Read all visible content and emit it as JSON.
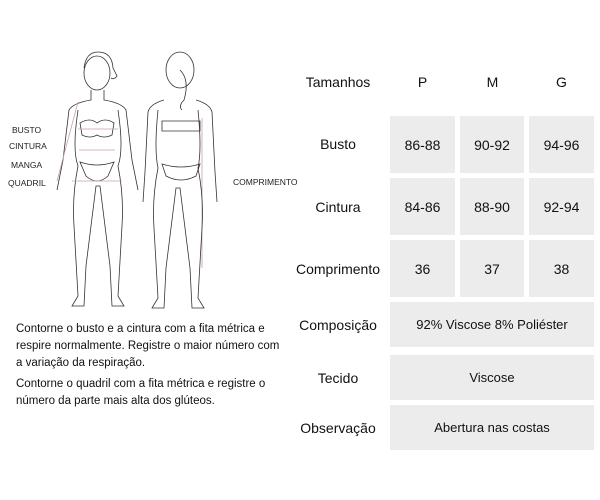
{
  "figure": {
    "labels": {
      "busto": "BUSTO",
      "cintura": "CINTURA",
      "manga": "MANGA",
      "quadril": "QUADRIL",
      "comprimento": "COMPRIMENTO"
    },
    "measure_line_color": "#c9a3a3"
  },
  "instructions": [
    "Contorne o busto e a cintura com a fita métrica e respire normalmente. Registre o maior número com a variação da respiração.",
    "Contorne o quadril com a fita métrica e registre o número da parte mais alta dos glúteos."
  ],
  "table": {
    "header": {
      "label": "Tamanhos",
      "sizes": [
        "P",
        "M",
        "G"
      ]
    },
    "rows": [
      {
        "label": "Busto",
        "values": [
          "86-88",
          "90-92",
          "94-96"
        ]
      },
      {
        "label": "Cintura",
        "values": [
          "84-86",
          "88-90",
          "92-94"
        ]
      },
      {
        "label": "Comprimento",
        "values": [
          "36",
          "37",
          "38"
        ]
      }
    ],
    "info": [
      {
        "label": "Composição",
        "value": "92% Viscose 8% Poliéster"
      },
      {
        "label": "Tecido",
        "value": "Viscose"
      },
      {
        "label": "Observação",
        "value": "Abertura nas costas"
      }
    ],
    "cell_color": "#ececec"
  }
}
